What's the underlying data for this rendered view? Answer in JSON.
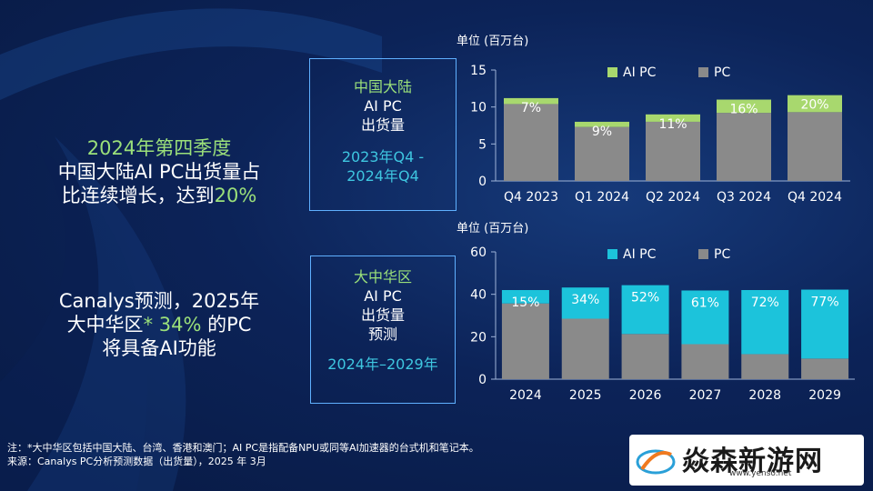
{
  "headline": {
    "line1": "2024年第四季度",
    "line2": "中国大陆AI PC出货量占",
    "line3a": "比连续增长，达到",
    "line3b": "20%"
  },
  "forecast_text": {
    "line1": "Canalys预测，2025年",
    "line2a": "大中华区",
    "line2b": "* 34%",
    "line2c": " 的PC",
    "line3": "将具备AI功能"
  },
  "box1": {
    "region": "中国大陆",
    "product": "AI PC",
    "metric": "出货量",
    "period1": "2023年Q4 -",
    "period2": "2024年Q4"
  },
  "box2": {
    "region": "大中华区",
    "product": "AI PC",
    "metric": "出货量",
    "type": "预测",
    "period": "2024年–2029年"
  },
  "unit_label_1": "单位 (百万台)",
  "unit_label_2": "单位 (百万台)",
  "footnote": "注：*大中华区包括中国大陆、台湾、香港和澳门；AI PC是指配备NPU或同等AI加速器的台式机和笔记本。",
  "source": "来源：Canalys PC分析预测数据（出货量），2025 年 3月",
  "watermark": {
    "name": "焱森新游网",
    "url": "www.yenso.net"
  },
  "colors": {
    "ai_pc_green": "#a8d86e",
    "ai_pc_cyan": "#1cc3db",
    "pc_gray": "#8a8a8a",
    "highlight_green": "#9be07a",
    "box_border": "#5fb0ff"
  },
  "chart_data": [
    {
      "type": "bar",
      "stacked": true,
      "categories": [
        "Q4 2023",
        "Q1 2024",
        "Q2 2024",
        "Q3 2024",
        "Q4 2024"
      ],
      "series": [
        {
          "name": "PC",
          "values": [
            10.4,
            7.3,
            8.0,
            9.2,
            9.3
          ]
        },
        {
          "name": "AI PC",
          "values": [
            0.8,
            0.7,
            1.0,
            1.8,
            2.3
          ]
        }
      ],
      "data_labels": [
        "7%",
        "9%",
        "11%",
        "16%",
        "20%"
      ],
      "ylabel": "单位 (百万台)",
      "ylim": [
        0,
        15
      ],
      "yticks": [
        0,
        5,
        10,
        15
      ],
      "legend": "top-right"
    },
    {
      "type": "bar",
      "stacked": true,
      "categories": [
        "2024",
        "2025",
        "2026",
        "2027",
        "2028",
        "2029"
      ],
      "series": [
        {
          "name": "PC",
          "values": [
            35.7,
            28.5,
            21.3,
            16.5,
            11.8,
            9.7
          ]
        },
        {
          "name": "AI PC",
          "values": [
            6.3,
            14.7,
            23.0,
            25.3,
            30.2,
            32.5
          ]
        }
      ],
      "data_labels": [
        "15%",
        "34%",
        "52%",
        "61%",
        "72%",
        "77%"
      ],
      "ylabel": "单位 (百万台)",
      "ylim": [
        0,
        60
      ],
      "yticks": [
        0,
        20,
        40,
        60
      ],
      "legend": "top-right"
    }
  ]
}
